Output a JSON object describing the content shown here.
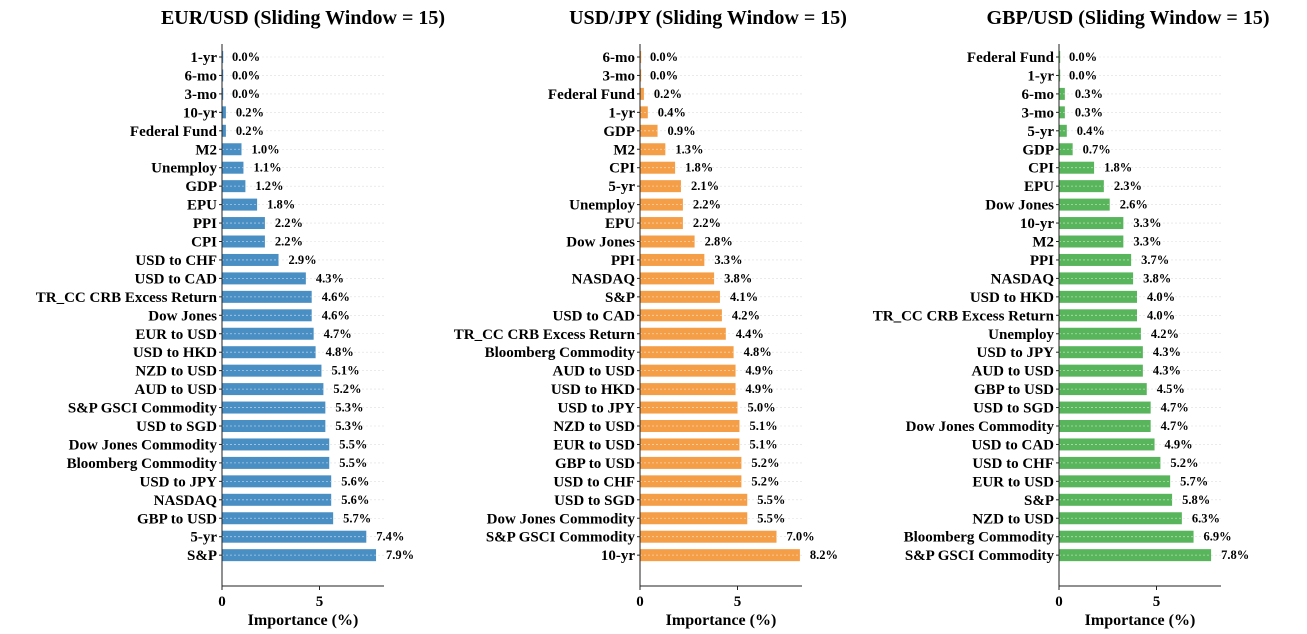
{
  "chart_data": [
    {
      "type": "bar",
      "orientation": "horizontal",
      "title": "EUR/USD (Sliding Window = 15)",
      "xlabel": "Importance (%)",
      "ylabel": "",
      "xlim": [
        0,
        8.5
      ],
      "xticks": [
        0,
        5
      ],
      "color": "#4a8fc4",
      "categories": [
        "1-yr",
        "6-mo",
        "3-mo",
        "10-yr",
        "Federal Fund",
        "M2",
        "Unemploy",
        "GDP",
        "EPU",
        "PPI",
        "CPI",
        "USD to CHF",
        "USD to CAD",
        "TR_CC CRB Excess Return",
        "Dow Jones",
        "EUR to USD",
        "USD to HKD",
        "NZD to USD",
        "AUD to USD",
        "S&P GSCI Commodity",
        "USD to SGD",
        "Dow Jones Commodity",
        "Bloomberg Commodity",
        "USD to JPY",
        "NASDAQ",
        "GBP to USD",
        "5-yr",
        "S&P"
      ],
      "values": [
        0.0,
        0.0,
        0.0,
        0.2,
        0.2,
        1.0,
        1.1,
        1.2,
        1.8,
        2.2,
        2.2,
        2.9,
        4.3,
        4.6,
        4.6,
        4.7,
        4.8,
        5.1,
        5.2,
        5.3,
        5.3,
        5.5,
        5.5,
        5.6,
        5.6,
        5.7,
        7.4,
        7.9
      ],
      "labels": [
        "0.0%",
        "0.0%",
        "0.0%",
        "0.2%",
        "0.2%",
        "1.0%",
        "1.1%",
        "1.2%",
        "1.8%",
        "2.2%",
        "2.2%",
        "2.9%",
        "4.3%",
        "4.6%",
        "4.6%",
        "4.7%",
        "4.8%",
        "5.1%",
        "5.2%",
        "5.3%",
        "5.3%",
        "5.5%",
        "5.5%",
        "5.6%",
        "5.6%",
        "5.7%",
        "7.4%",
        "7.9%"
      ],
      "grid": true
    },
    {
      "type": "bar",
      "orientation": "horizontal",
      "title": "USD/JPY (Sliding Window = 15)",
      "xlabel": "Importance (%)",
      "ylabel": "",
      "xlim": [
        0,
        8.5
      ],
      "xticks": [
        0,
        5
      ],
      "color": "#f59e48",
      "categories": [
        "6-mo",
        "3-mo",
        "Federal Fund",
        "1-yr",
        "GDP",
        "M2",
        "CPI",
        "5-yr",
        "Unemploy",
        "EPU",
        "Dow Jones",
        "PPI",
        "NASDAQ",
        "S&P",
        "USD to CAD",
        "TR_CC CRB Excess Return",
        "Bloomberg Commodity",
        "AUD to USD",
        "USD to HKD",
        "USD to JPY",
        "NZD to USD",
        "EUR to USD",
        "GBP to USD",
        "USD to CHF",
        "USD to SGD",
        "Dow Jones Commodity",
        "S&P GSCI Commodity",
        "10-yr"
      ],
      "values": [
        0.0,
        0.0,
        0.2,
        0.4,
        0.9,
        1.3,
        1.8,
        2.1,
        2.2,
        2.2,
        2.8,
        3.3,
        3.8,
        4.1,
        4.2,
        4.4,
        4.8,
        4.9,
        4.9,
        5.0,
        5.1,
        5.1,
        5.2,
        5.2,
        5.5,
        5.5,
        7.0,
        8.2
      ],
      "labels": [
        "0.0%",
        "0.0%",
        "0.2%",
        "0.4%",
        "0.9%",
        "1.3%",
        "1.8%",
        "2.1%",
        "2.2%",
        "2.2%",
        "2.8%",
        "3.3%",
        "3.8%",
        "4.1%",
        "4.2%",
        "4.4%",
        "4.8%",
        "4.9%",
        "4.9%",
        "5.0%",
        "5.1%",
        "5.1%",
        "5.2%",
        "5.2%",
        "5.5%",
        "5.5%",
        "7.0%",
        "8.2%"
      ],
      "grid": true
    },
    {
      "type": "bar",
      "orientation": "horizontal",
      "title": "GBP/USD (Sliding Window = 15)",
      "xlabel": "Importance (%)",
      "ylabel": "",
      "xlim": [
        0,
        8.5
      ],
      "xticks": [
        0,
        5
      ],
      "color": "#58b55c",
      "categories": [
        "Federal Fund",
        "1-yr",
        "6-mo",
        "3-mo",
        "5-yr",
        "GDP",
        "CPI",
        "EPU",
        "Dow Jones",
        "10-yr",
        "M2",
        "PPI",
        "NASDAQ",
        "USD to HKD",
        "TR_CC CRB Excess Return",
        "Unemploy",
        "USD to JPY",
        "AUD to USD",
        "GBP to USD",
        "USD to SGD",
        "Dow Jones Commodity",
        "USD to CAD",
        "USD to CHF",
        "EUR to USD",
        "S&P",
        "NZD to USD",
        "Bloomberg Commodity",
        "S&P GSCI Commodity"
      ],
      "values": [
        0.0,
        0.0,
        0.3,
        0.3,
        0.4,
        0.7,
        1.8,
        2.3,
        2.6,
        3.3,
        3.3,
        3.7,
        3.8,
        4.0,
        4.0,
        4.2,
        4.3,
        4.3,
        4.5,
        4.7,
        4.7,
        4.9,
        5.2,
        5.7,
        5.8,
        6.3,
        6.9,
        7.8
      ],
      "labels": [
        "0.0%",
        "0.0%",
        "0.3%",
        "0.3%",
        "0.4%",
        "0.7%",
        "1.8%",
        "2.3%",
        "2.6%",
        "3.3%",
        "3.3%",
        "3.7%",
        "3.8%",
        "4.0%",
        "4.0%",
        "4.2%",
        "4.3%",
        "4.3%",
        "4.5%",
        "4.7%",
        "4.7%",
        "4.9%",
        "5.2%",
        "5.7%",
        "5.8%",
        "6.3%",
        "6.9%",
        "7.8%"
      ],
      "grid": true
    }
  ]
}
